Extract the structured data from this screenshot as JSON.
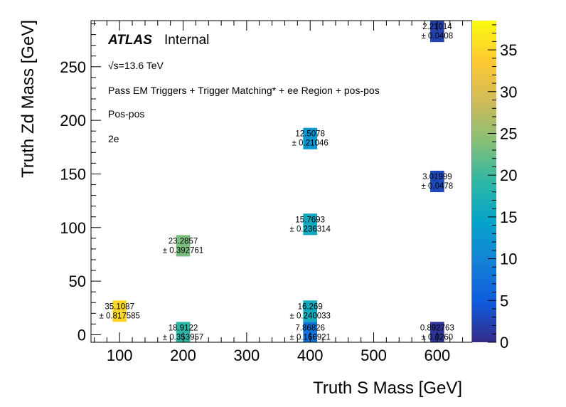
{
  "chart_data": {
    "type": "heatmap",
    "xlabel": "Truth S Mass [GeV]",
    "ylabel": "Truth Zd Mass [GeV]",
    "xlim": [
      55,
      655
    ],
    "ylim": [
      -7,
      293
    ],
    "xticks": [
      100,
      200,
      300,
      400,
      500,
      600
    ],
    "yticks": [
      0,
      50,
      100,
      150,
      200,
      250
    ],
    "zlim": [
      0,
      38.5
    ],
    "zticks": [
      0,
      5,
      10,
      15,
      20,
      25,
      30,
      35
    ],
    "cell_width": 22,
    "cell_height": 20,
    "colormap": [
      "#352a87",
      "#0f5cdd",
      "#1481d6",
      "#06a4ca",
      "#2eb7a4",
      "#87bf77",
      "#d1bb59",
      "#fec832",
      "#f9fb0e"
    ],
    "points": [
      {
        "x": 100,
        "y": 22,
        "value": 35.1087,
        "error": 0.817585,
        "label": "35.1087",
        "error_label": "± 0.817585"
      },
      {
        "x": 200,
        "y": 2,
        "value": 18.9122,
        "error": 0.353957,
        "label": "18.9122",
        "error_label": "± 0.353957"
      },
      {
        "x": 200,
        "y": 83,
        "value": 23.2857,
        "error": 0.392761,
        "label": "23.2857",
        "error_label": "± 0.392761"
      },
      {
        "x": 400,
        "y": 2,
        "value": 7.86826,
        "error": 0.166921,
        "label": "7.86826",
        "error_label": "± 0.166921"
      },
      {
        "x": 400,
        "y": 22,
        "value": 16.269,
        "error": 0.240033,
        "label": "16.269",
        "error_label": "± 0.240033"
      },
      {
        "x": 400,
        "y": 103,
        "value": 15.7693,
        "error": 0.236314,
        "label": "15.7693",
        "error_label": "± 0.236314"
      },
      {
        "x": 400,
        "y": 183,
        "value": 12.5078,
        "error": 0.21046,
        "label": "12.5078",
        "error_label": "± 0.21046"
      },
      {
        "x": 600,
        "y": 2,
        "value": 0.892763,
        "error": 0.026,
        "label": "0.892763",
        "error_label": "± 0.0260"
      },
      {
        "x": 600,
        "y": 143,
        "value": 3.01999,
        "error": 0.0478,
        "label": "3.01999",
        "error_label": "± 0.0478"
      },
      {
        "x": 600,
        "y": 283,
        "value": 2.21014,
        "error": 0.0408,
        "label": "2.21014",
        "error_label": "± 0.0408"
      }
    ]
  },
  "annotations": {
    "atlas": "ATLAS",
    "internal": "Internal",
    "energy": "√s=13.6 TeV",
    "selection": "Pass EM Triggers + Trigger Matching* + ee Region + pos-pos",
    "charge": "Pos-pos",
    "channel": "2e"
  }
}
